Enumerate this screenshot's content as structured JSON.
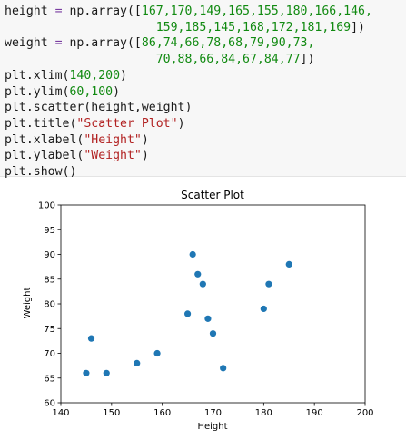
{
  "code": {
    "lines": [
      [
        {
          "t": "height ",
          "c": ""
        },
        {
          "t": "=",
          "c": "op"
        },
        {
          "t": " np.array([",
          "c": ""
        },
        {
          "t": "167,170,149,165,155,180,166,146,",
          "c": "num"
        }
      ],
      [
        {
          "t": "                     ",
          "c": ""
        },
        {
          "t": "159,185,145,168,172,181,169",
          "c": "num"
        },
        {
          "t": "])",
          "c": ""
        }
      ],
      [
        {
          "t": "weight ",
          "c": ""
        },
        {
          "t": "=",
          "c": "op"
        },
        {
          "t": " np.array([",
          "c": ""
        },
        {
          "t": "86,74,66,78,68,79,90,73,",
          "c": "num"
        }
      ],
      [
        {
          "t": "                     ",
          "c": ""
        },
        {
          "t": "70,88,66,84,67,84,77",
          "c": "num"
        },
        {
          "t": "])",
          "c": ""
        }
      ],
      [
        {
          "t": "plt.xlim(",
          "c": ""
        },
        {
          "t": "140,200",
          "c": "num"
        },
        {
          "t": ")",
          "c": ""
        }
      ],
      [
        {
          "t": "plt.ylim(",
          "c": ""
        },
        {
          "t": "60,100",
          "c": "num"
        },
        {
          "t": ")",
          "c": ""
        }
      ],
      [
        {
          "t": "plt.scatter(height,weight)",
          "c": ""
        }
      ],
      [
        {
          "t": "plt.title(",
          "c": ""
        },
        {
          "t": "\"Scatter Plot\"",
          "c": "str"
        },
        {
          "t": ")",
          "c": ""
        }
      ],
      [
        {
          "t": "plt.xlabel(",
          "c": ""
        },
        {
          "t": "\"Height\"",
          "c": "str"
        },
        {
          "t": ")",
          "c": ""
        }
      ],
      [
        {
          "t": "plt.ylabel(",
          "c": ""
        },
        {
          "t": "\"Weight\"",
          "c": "str"
        },
        {
          "t": ")",
          "c": ""
        }
      ],
      [
        {
          "t": "plt.show()",
          "c": ""
        }
      ]
    ]
  },
  "chart_data": {
    "type": "scatter",
    "title": "Scatter Plot",
    "xlabel": "Height",
    "ylabel": "Weight",
    "xlim": [
      140,
      200
    ],
    "ylim": [
      60,
      100
    ],
    "xticks": [
      140,
      150,
      160,
      170,
      180,
      190,
      200
    ],
    "yticks": [
      60,
      65,
      70,
      75,
      80,
      85,
      90,
      95,
      100
    ],
    "grid": false,
    "color": "#1f77b4",
    "points": [
      {
        "x": 167,
        "y": 86
      },
      {
        "x": 170,
        "y": 74
      },
      {
        "x": 149,
        "y": 66
      },
      {
        "x": 165,
        "y": 78
      },
      {
        "x": 155,
        "y": 68
      },
      {
        "x": 180,
        "y": 79
      },
      {
        "x": 166,
        "y": 90
      },
      {
        "x": 146,
        "y": 73
      },
      {
        "x": 159,
        "y": 70
      },
      {
        "x": 185,
        "y": 88
      },
      {
        "x": 145,
        "y": 66
      },
      {
        "x": 168,
        "y": 84
      },
      {
        "x": 172,
        "y": 67
      },
      {
        "x": 181,
        "y": 84
      },
      {
        "x": 169,
        "y": 77
      }
    ]
  }
}
